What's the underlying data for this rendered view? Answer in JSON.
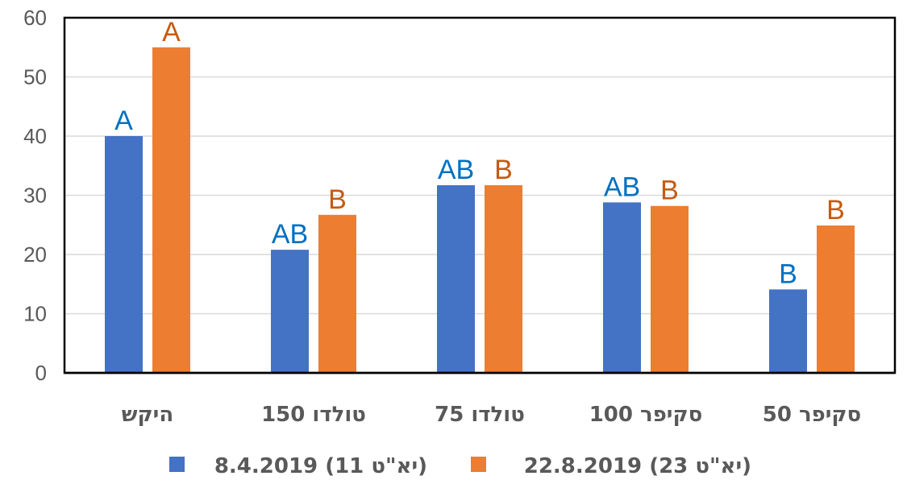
{
  "chart_data": {
    "type": "bar",
    "categories": [
      "היקש",
      "טולדו 150",
      "טולדו 75",
      "סקיפר 100",
      "סקיפר 50"
    ],
    "series": [
      {
        "name": "8.4.2019 (11 יא\"ט)",
        "color": "#4472C4",
        "label_color": "#0070C0",
        "values": [
          40,
          20.8,
          31.7,
          28.8,
          14.1
        ],
        "labels": [
          "A",
          "AB",
          "AB",
          "AB",
          "B"
        ]
      },
      {
        "name": "22.8.2019 (23 יא\"ט)",
        "color": "#ED7D31",
        "label_color": "#C55A11",
        "values": [
          55,
          26.7,
          31.7,
          28.2,
          24.9
        ],
        "labels": [
          "A",
          "B",
          "B",
          "B",
          "B"
        ]
      }
    ],
    "ylim": [
      0,
      60
    ],
    "yticks": [
      0,
      10,
      20,
      30,
      40,
      50,
      60
    ],
    "grid": true,
    "legend_position": "bottom",
    "title": "",
    "xlabel": "",
    "ylabel": ""
  }
}
